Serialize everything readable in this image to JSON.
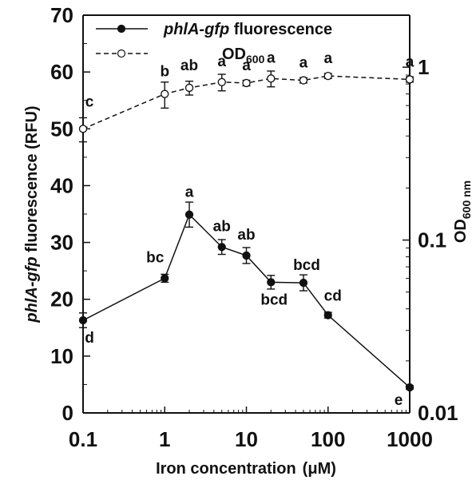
{
  "chart_data": {
    "type": "line",
    "xlabel": "Iron concentration",
    "xlabel_unit": "(μM)",
    "x_scale": "log",
    "xlim": [
      0.1,
      1000
    ],
    "x_ticks": [
      "0.1",
      "1",
      "10",
      "100",
      "1000"
    ],
    "y_left": {
      "label_italic": "phlA-gfp",
      "label_rest": " fluorescence (RFU)",
      "ylim": [
        0,
        70
      ],
      "ticks": [
        "0",
        "10",
        "20",
        "30",
        "40",
        "50",
        "60",
        "70"
      ]
    },
    "y_right": {
      "label_main": "OD",
      "label_sub": "600 nm",
      "scale": "log",
      "ylim": [
        0.01,
        2
      ],
      "ticks": [
        "0.01",
        "0.1",
        "1"
      ]
    },
    "legend": {
      "position": "top-left",
      "entries": [
        {
          "italic": "phlA-gfp",
          "rest": " fluorescence"
        },
        {
          "main": "OD",
          "sub": "600"
        }
      ]
    },
    "series": [
      {
        "name": "phlA-gfp fluorescence",
        "axis": "left",
        "marker": "filled-circle",
        "line": "solid",
        "x": [
          0.1,
          1,
          2,
          5,
          10,
          20,
          50,
          100,
          1000
        ],
        "y": [
          16.3,
          23.7,
          34.9,
          29.2,
          27.7,
          23.0,
          22.9,
          17.2,
          4.5
        ],
        "err": [
          1.3,
          0.7,
          2.2,
          1.3,
          1.4,
          1.2,
          1.4,
          0.5,
          0.3
        ],
        "labels": [
          "d",
          "bc",
          "a",
          "ab",
          "ab",
          "bcd",
          "bcd",
          "cd",
          "e"
        ]
      },
      {
        "name": "OD600",
        "axis": "right",
        "marker": "open-circle",
        "line": "dashed",
        "x": [
          0.1,
          1,
          2,
          5,
          10,
          20,
          50,
          100,
          1000
        ],
        "y": [
          0.44,
          0.7,
          0.76,
          0.82,
          0.81,
          0.86,
          0.84,
          0.89,
          0.85
        ],
        "err": [
          0.07,
          0.12,
          0.07,
          0.09,
          0.03,
          0.09,
          0.03,
          0.03,
          0.03
        ],
        "labels": [
          "c",
          "b",
          "ab",
          "a",
          "a",
          "a",
          "a",
          "a",
          "a"
        ]
      }
    ]
  }
}
